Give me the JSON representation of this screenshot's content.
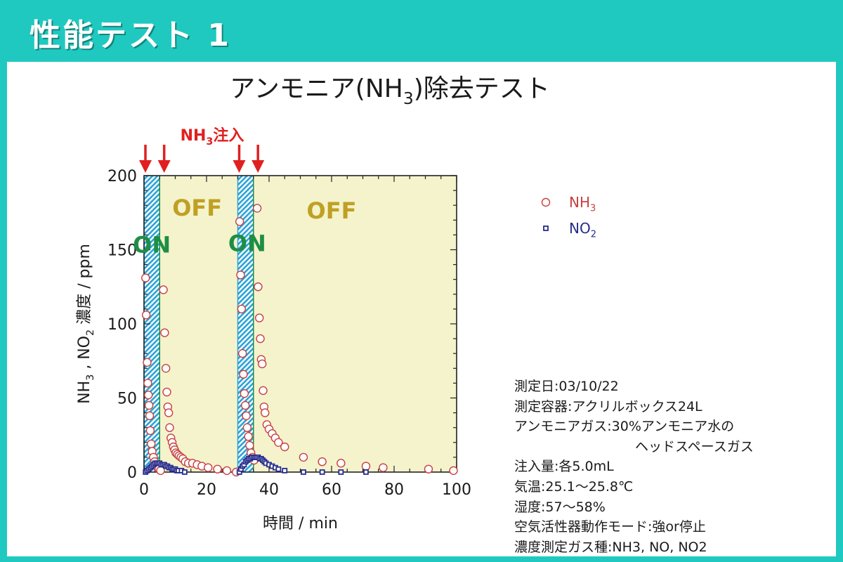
{
  "header": {
    "title": "性能テスト 1"
  },
  "colors": {
    "header_bg": "#1fc9c0",
    "plot_bg": "#f4f3cc",
    "injection_band": "#2aa3d8",
    "nh3": "#c94040",
    "no2": "#262c8c",
    "on_label": "#1e8e46",
    "off_label": "#c0a024",
    "arrow": "#e02020"
  },
  "chart_data": {
    "type": "scatter",
    "title": "アンモニア(NH3)除去テスト",
    "xlabel": "時間 / min",
    "ylabel": "NH3 , NO2 濃度 / ppm",
    "xlim": [
      0,
      100
    ],
    "ylim": [
      0,
      200
    ],
    "x_ticks": [
      0,
      20,
      40,
      60,
      80,
      100
    ],
    "y_ticks": [
      0,
      50,
      100,
      150,
      200
    ],
    "grid": false,
    "legend_position": "right",
    "injection_label": "NH3注入",
    "injection_times": [
      0,
      6,
      30,
      36
    ],
    "on_periods": [
      [
        0,
        5
      ],
      [
        30,
        35
      ]
    ],
    "region_labels": [
      {
        "text": "ON",
        "x": 2.5,
        "y": 148
      },
      {
        "text": "OFF",
        "x": 17,
        "y": 173
      },
      {
        "text": "ON",
        "x": 33,
        "y": 149
      },
      {
        "text": "OFF",
        "x": 60,
        "y": 171
      }
    ],
    "series": [
      {
        "name": "NH3",
        "marker": "circle",
        "points": [
          [
            0.5,
            131
          ],
          [
            0.7,
            106
          ],
          [
            1.0,
            74
          ],
          [
            1.2,
            60
          ],
          [
            1.4,
            52
          ],
          [
            1.6,
            45
          ],
          [
            1.8,
            38
          ],
          [
            2.0,
            28
          ],
          [
            2.3,
            19
          ],
          [
            2.6,
            14
          ],
          [
            3.0,
            10
          ],
          [
            3.4,
            7
          ],
          [
            3.8,
            5
          ],
          [
            4.3,
            3
          ],
          [
            4.8,
            2
          ],
          [
            5.3,
            1
          ],
          [
            6.2,
            123
          ],
          [
            6.6,
            94
          ],
          [
            7.0,
            70
          ],
          [
            7.3,
            54
          ],
          [
            7.6,
            44
          ],
          [
            7.9,
            40
          ],
          [
            8.2,
            30
          ],
          [
            8.6,
            23
          ],
          [
            9.0,
            20
          ],
          [
            9.4,
            17
          ],
          [
            9.8,
            15
          ],
          [
            10.2,
            13
          ],
          [
            10.7,
            12
          ],
          [
            11.2,
            11
          ],
          [
            11.8,
            10
          ],
          [
            12.4,
            9
          ],
          [
            13.2,
            7
          ],
          [
            14.2,
            6
          ],
          [
            15.5,
            6
          ],
          [
            17.0,
            5
          ],
          [
            18.5,
            4
          ],
          [
            20.5,
            3
          ],
          [
            23.5,
            2
          ],
          [
            26.5,
            1
          ],
          [
            29.5,
            0
          ],
          [
            30.6,
            169
          ],
          [
            30.9,
            133
          ],
          [
            31.2,
            110
          ],
          [
            31.5,
            80
          ],
          [
            31.8,
            66
          ],
          [
            32.1,
            53
          ],
          [
            32.4,
            45
          ],
          [
            32.7,
            38
          ],
          [
            33.0,
            30
          ],
          [
            33.4,
            24
          ],
          [
            33.8,
            18
          ],
          [
            34.2,
            13
          ],
          [
            34.7,
            10
          ],
          [
            35.2,
            8
          ],
          [
            36.2,
            178
          ],
          [
            36.5,
            125
          ],
          [
            36.9,
            104
          ],
          [
            37.2,
            90
          ],
          [
            37.5,
            76
          ],
          [
            37.8,
            73
          ],
          [
            38.1,
            55
          ],
          [
            38.4,
            44
          ],
          [
            38.7,
            40
          ],
          [
            39.3,
            32
          ],
          [
            40.0,
            29
          ],
          [
            41.0,
            26
          ],
          [
            42.0,
            23
          ],
          [
            43.0,
            20
          ],
          [
            45.0,
            17
          ],
          [
            51.0,
            10
          ],
          [
            57.0,
            7
          ],
          [
            63.0,
            6
          ],
          [
            71.0,
            4
          ],
          [
            76.5,
            3
          ],
          [
            91.0,
            2
          ],
          [
            99.0,
            1
          ]
        ]
      },
      {
        "name": "NO2",
        "marker": "square",
        "points": [
          [
            0.5,
            0
          ],
          [
            1.0,
            1
          ],
          [
            1.5,
            2
          ],
          [
            2.0,
            3
          ],
          [
            2.5,
            4
          ],
          [
            3.0,
            5
          ],
          [
            3.5,
            6
          ],
          [
            4.0,
            6
          ],
          [
            4.5,
            6
          ],
          [
            5.0,
            6
          ],
          [
            5.5,
            5
          ],
          [
            6.0,
            5
          ],
          [
            6.5,
            5
          ],
          [
            7.0,
            4
          ],
          [
            7.5,
            4
          ],
          [
            8.0,
            3
          ],
          [
            8.5,
            3
          ],
          [
            9.0,
            2
          ],
          [
            9.5,
            2
          ],
          [
            10.0,
            2
          ],
          [
            10.5,
            1
          ],
          [
            11.0,
            1
          ],
          [
            12.0,
            1
          ],
          [
            13.0,
            0
          ],
          [
            30.5,
            0
          ],
          [
            31.0,
            2
          ],
          [
            31.5,
            4
          ],
          [
            32.0,
            5
          ],
          [
            32.5,
            7
          ],
          [
            33.0,
            8
          ],
          [
            33.5,
            9
          ],
          [
            34.0,
            9
          ],
          [
            34.5,
            10
          ],
          [
            35.0,
            10
          ],
          [
            35.5,
            10
          ],
          [
            36.0,
            10
          ],
          [
            36.5,
            10
          ],
          [
            37.0,
            9
          ],
          [
            37.5,
            9
          ],
          [
            38.0,
            8
          ],
          [
            38.5,
            7
          ],
          [
            39.0,
            6
          ],
          [
            40.0,
            5
          ],
          [
            41.0,
            4
          ],
          [
            42.0,
            3
          ],
          [
            43.0,
            2
          ],
          [
            45.0,
            1
          ],
          [
            51.0,
            0
          ],
          [
            57.0,
            0
          ],
          [
            63.0,
            0
          ],
          [
            71.0,
            0
          ]
        ]
      }
    ]
  },
  "conditions": [
    "測定日:03/10/22",
    "測定容器:アクリルボックス24L",
    "アンモニアガス:30%アンモニア水の",
    "ヘッドスペースガス",
    "注入量:各5.0mL",
    "気温:25.1～25.8℃",
    "湿度:57～58%",
    "空気活性器動作モード:強or停止",
    "濃度測定ガス種:NH3, NO, NO2"
  ]
}
